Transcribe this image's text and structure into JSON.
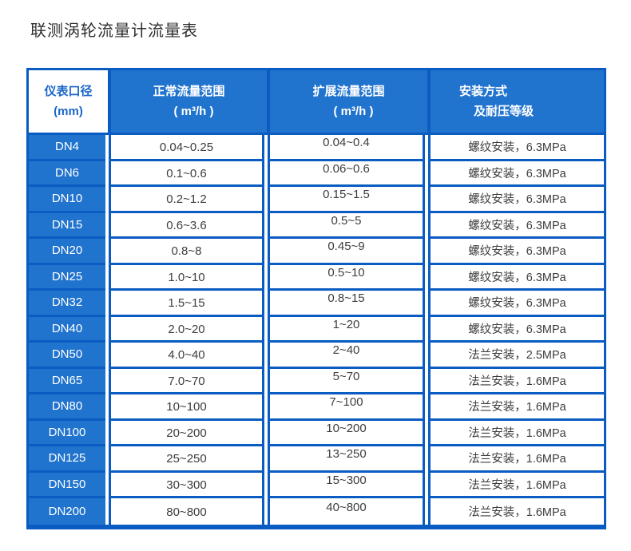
{
  "page": {
    "title": "联测涡轮流量计流量表"
  },
  "colors": {
    "cell_fill_blue": "#2174ce",
    "border_blue": "#0b5cc2",
    "header_text": "#ffffff",
    "diameter_header_text": "#1a66c9",
    "body_text": "#3d3d3d"
  },
  "table": {
    "headers": {
      "col1_line1": "仪表口径",
      "col1_line2": "(mm)",
      "col2_line1": "正常流量范围",
      "col2_line2": "( m³/h )",
      "col3_line1": "扩展流量范围",
      "col3_line2": "( m³/h )",
      "col4_line1": "安装方式",
      "col4_line2": "及耐压等级"
    },
    "rows": [
      {
        "dn": "DN4",
        "normal": "0.04~0.25",
        "extended": "0.04~0.4",
        "install": "螺纹安装，6.3MPa"
      },
      {
        "dn": "DN6",
        "normal": "0.1~0.6",
        "extended": "0.06~0.6",
        "install": "螺纹安装，6.3MPa"
      },
      {
        "dn": "DN10",
        "normal": "0.2~1.2",
        "extended": "0.15~1.5",
        "install": "螺纹安装，6.3MPa"
      },
      {
        "dn": "DN15",
        "normal": "0.6~3.6",
        "extended": "0.5~5",
        "install": "螺纹安装，6.3MPa"
      },
      {
        "dn": "DN20",
        "normal": "0.8~8",
        "extended": "0.45~9",
        "install": "螺纹安装，6.3MPa"
      },
      {
        "dn": "DN25",
        "normal": "1.0~10",
        "extended": "0.5~10",
        "install": "螺纹安装，6.3MPa"
      },
      {
        "dn": "DN32",
        "normal": "1.5~15",
        "extended": "0.8~15",
        "install": "螺纹安装，6.3MPa"
      },
      {
        "dn": "DN40",
        "normal": "2.0~20",
        "extended": "1~20",
        "install": "螺纹安装，6.3MPa"
      },
      {
        "dn": "DN50",
        "normal": "4.0~40",
        "extended": "2~40",
        "install": "法兰安装，2.5MPa"
      },
      {
        "dn": "DN65",
        "normal": "7.0~70",
        "extended": "5~70",
        "install": "法兰安装，1.6MPa"
      },
      {
        "dn": "DN80",
        "normal": "10~100",
        "extended": "7~100",
        "install": "法兰安装，1.6MPa"
      },
      {
        "dn": "DN100",
        "normal": "20~200",
        "extended": "10~200",
        "install": "法兰安装，1.6MPa"
      },
      {
        "dn": "DN125",
        "normal": "25~250",
        "extended": "13~250",
        "install": "法兰安装，1.6MPa"
      },
      {
        "dn": "DN150",
        "normal": "30~300",
        "extended": "15~300",
        "install": "法兰安装，1.6MPa"
      },
      {
        "dn": "DN200",
        "normal": "80~800",
        "extended": "40~800",
        "install": "法兰安装，1.6MPa"
      }
    ]
  }
}
